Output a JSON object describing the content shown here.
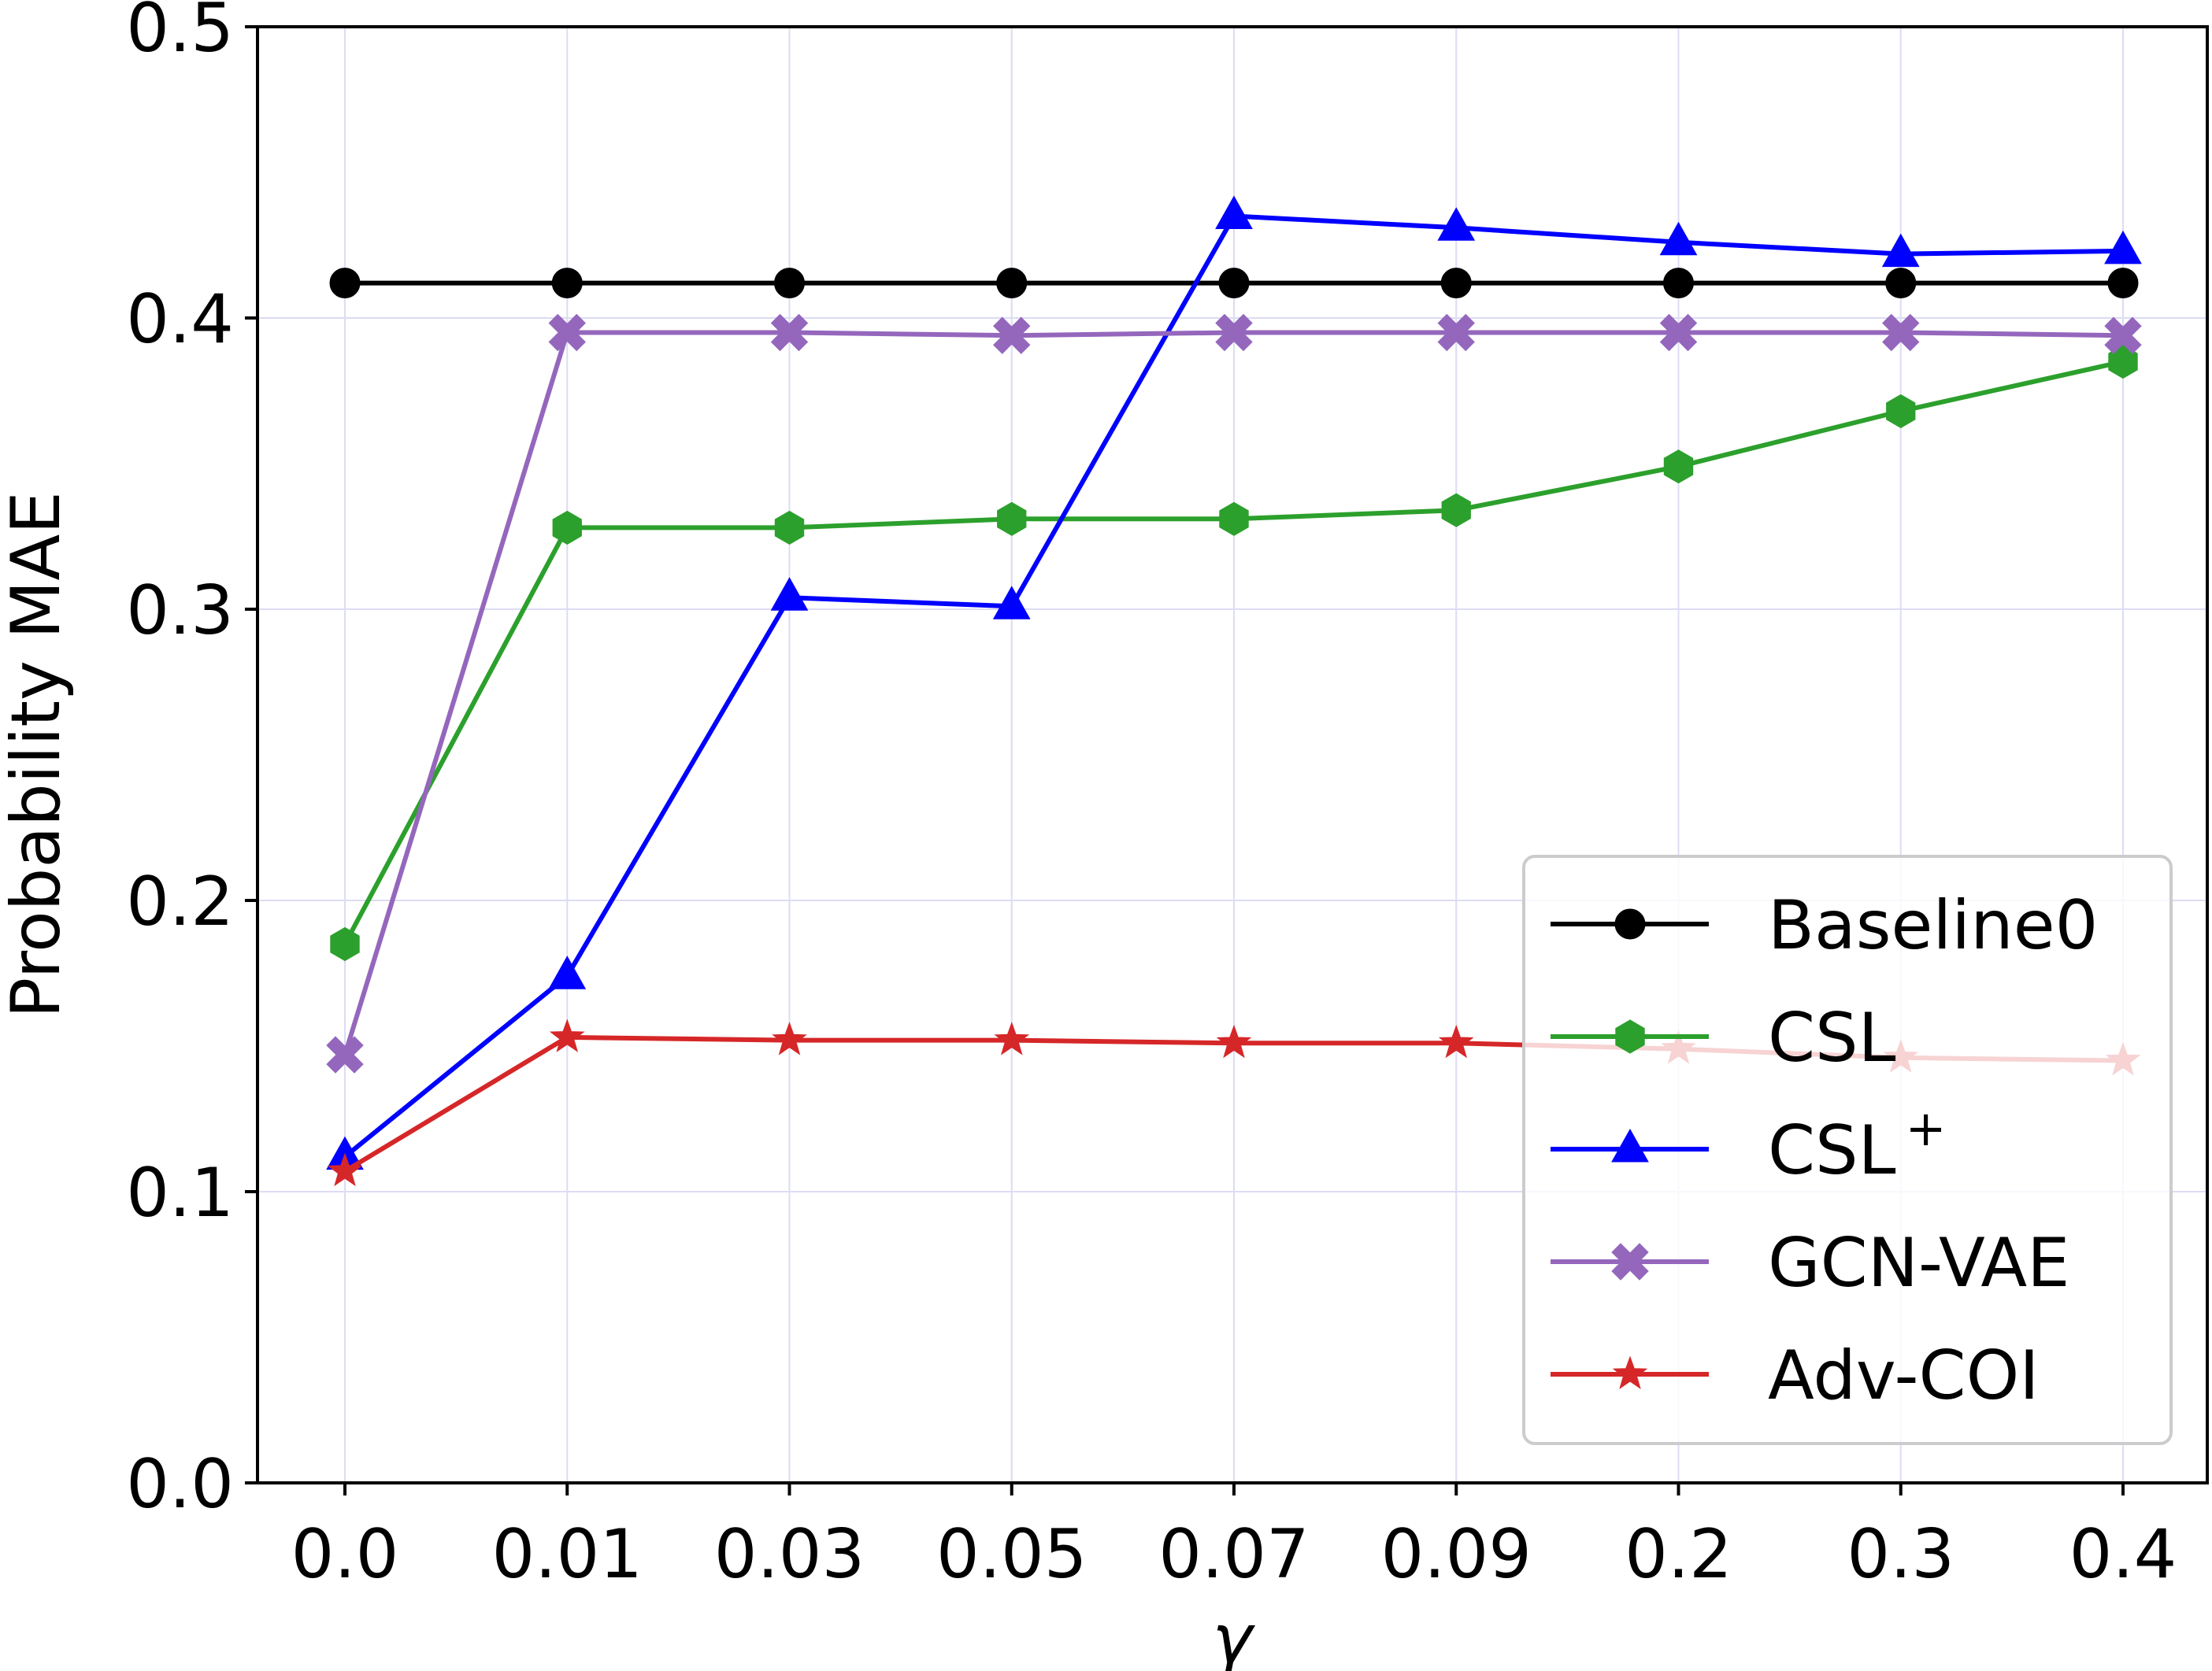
{
  "chart_data": {
    "type": "line",
    "title": "",
    "xlabel": "γ",
    "ylabel": "Probability MAE",
    "categories": [
      "0.0",
      "0.01",
      "0.03",
      "0.05",
      "0.07",
      "0.09",
      "0.2",
      "0.3",
      "0.4"
    ],
    "ylim": [
      0.0,
      0.5
    ],
    "yticks": [
      "0.0",
      "0.1",
      "0.2",
      "0.3",
      "0.4",
      "0.5"
    ],
    "grid": true,
    "legend_position": "lower-right",
    "series": [
      {
        "name": "Baseline0",
        "color": "#000000",
        "marker": "circle",
        "values": [
          0.412,
          0.412,
          0.412,
          0.412,
          0.412,
          0.412,
          0.412,
          0.412,
          0.412
        ]
      },
      {
        "name": "CSL",
        "color": "#2ca02c",
        "marker": "hexagon",
        "values": [
          0.185,
          0.328,
          0.328,
          0.331,
          0.331,
          0.334,
          0.349,
          0.368,
          0.385
        ]
      },
      {
        "name": "CSL",
        "name_sup": "+",
        "color": "#0000ff",
        "marker": "triangle",
        "values": [
          0.112,
          0.174,
          0.304,
          0.301,
          0.435,
          0.431,
          0.426,
          0.422,
          0.423
        ]
      },
      {
        "name": "GCN-VAE",
        "color": "#9467bd",
        "marker": "x",
        "values": [
          0.147,
          0.395,
          0.395,
          0.394,
          0.395,
          0.395,
          0.395,
          0.395,
          0.394
        ]
      },
      {
        "name": "Adv-COI",
        "color": "#d62728",
        "marker": "star",
        "values": [
          0.107,
          0.153,
          0.152,
          0.152,
          0.151,
          0.151,
          0.149,
          0.146,
          0.145
        ]
      }
    ]
  }
}
